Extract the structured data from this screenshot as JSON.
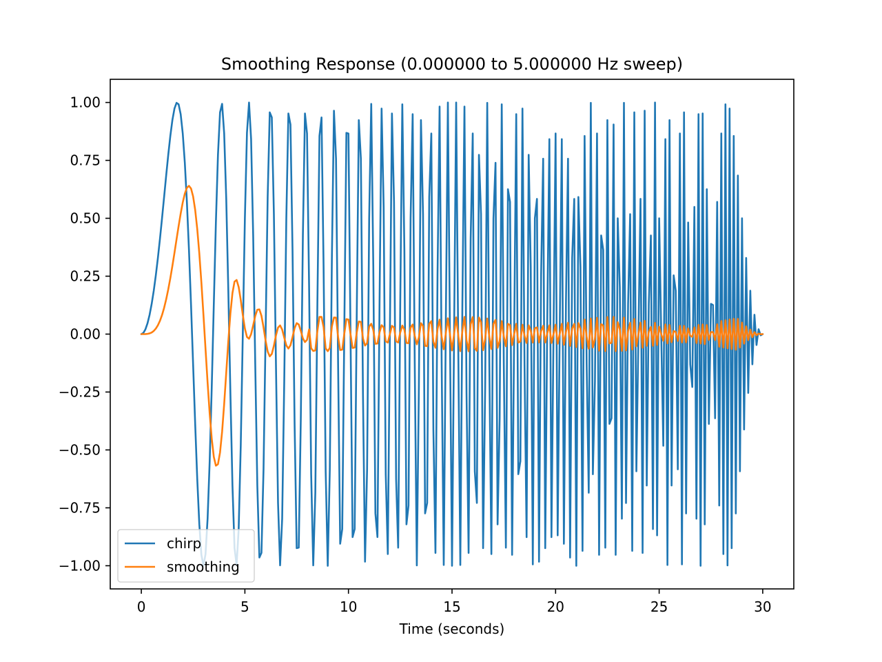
{
  "chart_data": {
    "type": "line",
    "title": "Smoothing Response (0.000000 to 5.000000 Hz sweep)",
    "xlabel": "Time (seconds)",
    "ylabel": "",
    "xlim": [
      -1.5,
      31.5
    ],
    "ylim": [
      -1.1,
      1.1
    ],
    "xticks": [
      0,
      5,
      10,
      15,
      20,
      25,
      30
    ],
    "xtick_labels": [
      "0",
      "5",
      "10",
      "15",
      "20",
      "25",
      "30"
    ],
    "yticks": [
      1.0,
      0.75,
      0.5,
      0.25,
      0.0,
      -0.25,
      -0.5,
      -0.75,
      -1.0
    ],
    "ytick_labels": [
      "1.00",
      "0.75",
      "0.50",
      "0.25",
      "0.00",
      "−0.25",
      "−0.50",
      "−0.75",
      "−1.00"
    ],
    "grid": false,
    "legend_position": "lower-left",
    "legend_labels": [
      "chirp",
      "smoothing"
    ],
    "series": [
      {
        "name": "chirp",
        "color": "#1f77b4",
        "generator": "chirp",
        "sweep_hz": [
          0.0,
          5.0
        ],
        "duration_s": 30,
        "sample_rate_hz": 10,
        "amplitude": 1.0
      },
      {
        "name": "smoothing",
        "color": "#ff7f0e",
        "generator": "smoothing",
        "source": "chirp",
        "peak_value": 0.64,
        "peak_time_s": 2.1,
        "envelope_tail": 0.055
      }
    ]
  }
}
